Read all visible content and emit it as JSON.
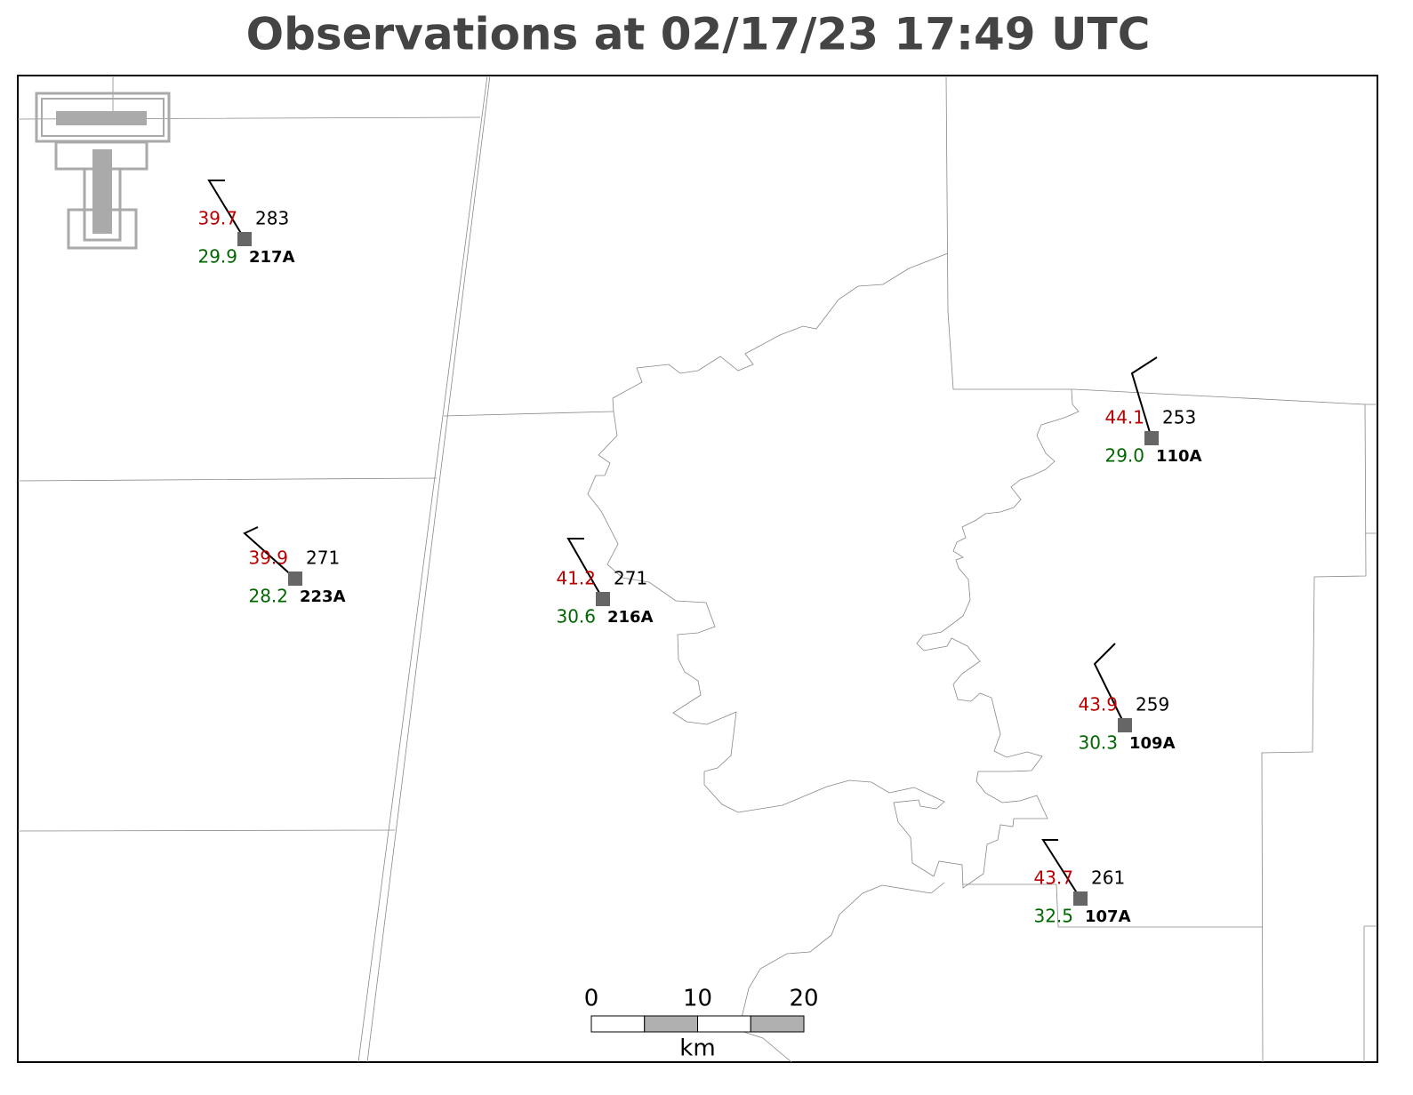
{
  "title": "Observations at 02/17/23 17:49 UTC",
  "stations": [
    {
      "id": "217A",
      "temperature": "39.7",
      "dewpoint": "29.9",
      "value": "283"
    },
    {
      "id": "223A",
      "temperature": "39.9",
      "dewpoint": "28.2",
      "value": "271"
    },
    {
      "id": "216A",
      "temperature": "41.2",
      "dewpoint": "30.6",
      "value": "271"
    },
    {
      "id": "110A",
      "temperature": "44.1",
      "dewpoint": "29.0",
      "value": "253"
    },
    {
      "id": "109A",
      "temperature": "43.9",
      "dewpoint": "30.3",
      "value": "259"
    },
    {
      "id": "107A",
      "temperature": "43.7",
      "dewpoint": "32.5",
      "value": "261"
    }
  ],
  "scale_bar": {
    "ticks": [
      "0",
      "10",
      "20"
    ],
    "unit": "km"
  }
}
